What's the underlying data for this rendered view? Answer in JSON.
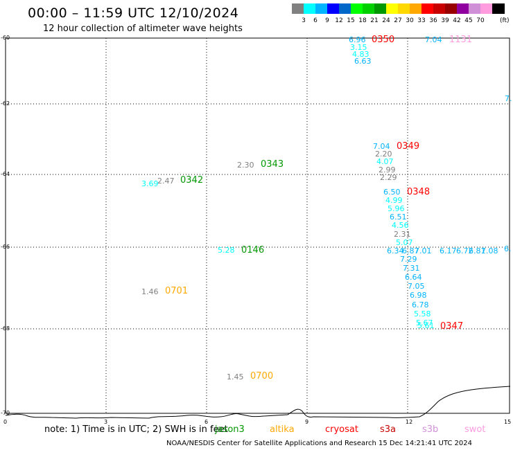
{
  "header": {
    "title": "00:00 – 11:59 UTC 12/10/2024",
    "subtitle": "12 hour collection of altimeter wave heights"
  },
  "legend": {
    "colors": [
      "#808080",
      "#00ffff",
      "#00b4ff",
      "#0000ff",
      "#0068c8",
      "#00ff00",
      "#00d000",
      "#009800",
      "#ffff00",
      "#ffd800",
      "#ffa800",
      "#ff0000",
      "#c80000",
      "#980000",
      "#9000a0",
      "#d090d8",
      "#ff9ce0",
      "#000000"
    ],
    "values": [
      "3",
      "6",
      "9",
      "12",
      "15",
      "18",
      "21",
      "24",
      "27",
      "30",
      "33",
      "36",
      "39",
      "42",
      "45",
      "70"
    ],
    "unit": "(ft)"
  },
  "axes": {
    "lat_labels": [
      "-60",
      "-62",
      "-64",
      "-66",
      "-68",
      "-70"
    ],
    "lon_labels": [
      "0",
      "3",
      "6",
      "9",
      "12",
      "15"
    ]
  },
  "observations": [
    {
      "text": "6.96",
      "color": "#00b4ff"
    },
    {
      "text": "3.15",
      "color": "#00ffff"
    },
    {
      "text": "4.83",
      "color": "#00ffff"
    },
    {
      "text": "6.63",
      "color": "#00b4ff"
    },
    {
      "text": "7.04",
      "color": "#00b4ff"
    },
    {
      "text": "7.",
      "color": "#00b4ff"
    },
    {
      "text": "7.04",
      "color": "#00b4ff"
    },
    {
      "text": "2.20",
      "color": "#808080"
    },
    {
      "text": "4.07",
      "color": "#00ffff"
    },
    {
      "text": "2.99",
      "color": "#808080"
    },
    {
      "text": "2.29",
      "color": "#808080"
    },
    {
      "text": "2.30",
      "color": "#808080"
    },
    {
      "text": "2.47",
      "color": "#808080"
    },
    {
      "text": "3.69",
      "color": "#00ffff"
    },
    {
      "text": "6.50",
      "color": "#00b4ff"
    },
    {
      "text": "4.99",
      "color": "#00ffff"
    },
    {
      "text": "5.96",
      "color": "#00ffff"
    },
    {
      "text": "6.51",
      "color": "#00b4ff"
    },
    {
      "text": "4.56",
      "color": "#00ffff"
    },
    {
      "text": "2.31",
      "color": "#808080"
    },
    {
      "text": "5.07",
      "color": "#00ffff"
    },
    {
      "text": "6.34",
      "color": "#00b4ff"
    },
    {
      "text": "6.87",
      "color": "#00b4ff"
    },
    {
      "text": "7.01",
      "color": "#00b4ff"
    },
    {
      "text": "6.17",
      "color": "#00b4ff"
    },
    {
      "text": "6.72",
      "color": "#00b4ff"
    },
    {
      "text": "6.81",
      "color": "#00b4ff"
    },
    {
      "text": "7.08",
      "color": "#00b4ff"
    },
    {
      "text": "6.",
      "color": "#00b4ff"
    },
    {
      "text": "5.28",
      "color": "#00ffff"
    },
    {
      "text": "7.29",
      "color": "#00b4ff"
    },
    {
      "text": "7.31",
      "color": "#00b4ff"
    },
    {
      "text": "6.64",
      "color": "#00b4ff"
    },
    {
      "text": "7.05",
      "color": "#00b4ff"
    },
    {
      "text": "6.98",
      "color": "#00b4ff"
    },
    {
      "text": "6.78",
      "color": "#00b4ff"
    },
    {
      "text": "5.58",
      "color": "#00ffff"
    },
    {
      "text": "5.67",
      "color": "#00ffff"
    },
    {
      "text": "5.61",
      "color": "#00ffff"
    },
    {
      "text": "1.46",
      "color": "#808080"
    },
    {
      "text": "1.45",
      "color": "#808080"
    }
  ],
  "time_labels": [
    {
      "text": "0350",
      "color": "#ff0000"
    },
    {
      "text": "1131",
      "color": "#ff9ce0"
    },
    {
      "text": "0349",
      "color": "#ff0000"
    },
    {
      "text": "0343",
      "color": "#009800"
    },
    {
      "text": "0342",
      "color": "#009800"
    },
    {
      "text": "0348",
      "color": "#ff0000"
    },
    {
      "text": "0146",
      "color": "#009800"
    },
    {
      "text": "0701",
      "color": "#ffa800"
    },
    {
      "text": "0347",
      "color": "#ff0000"
    },
    {
      "text": "0700",
      "color": "#ffa800"
    }
  ],
  "note": "note:  1) Time is in UTC;  2) SWH is in feet",
  "satellites": [
    {
      "text": "jason3",
      "color": "#009800"
    },
    {
      "text": "altika",
      "color": "#ffa800"
    },
    {
      "text": "cryosat",
      "color": "#ff0000"
    },
    {
      "text": "s3a",
      "color": "#c80000"
    },
    {
      "text": "s3b",
      "color": "#d090d8"
    },
    {
      "text": "swot",
      "color": "#ff9ce0"
    }
  ],
  "footer": "NOAA/NESDIS Center for Satellite Applications and Research     15 Dec 14:21:41 UTC 2024"
}
